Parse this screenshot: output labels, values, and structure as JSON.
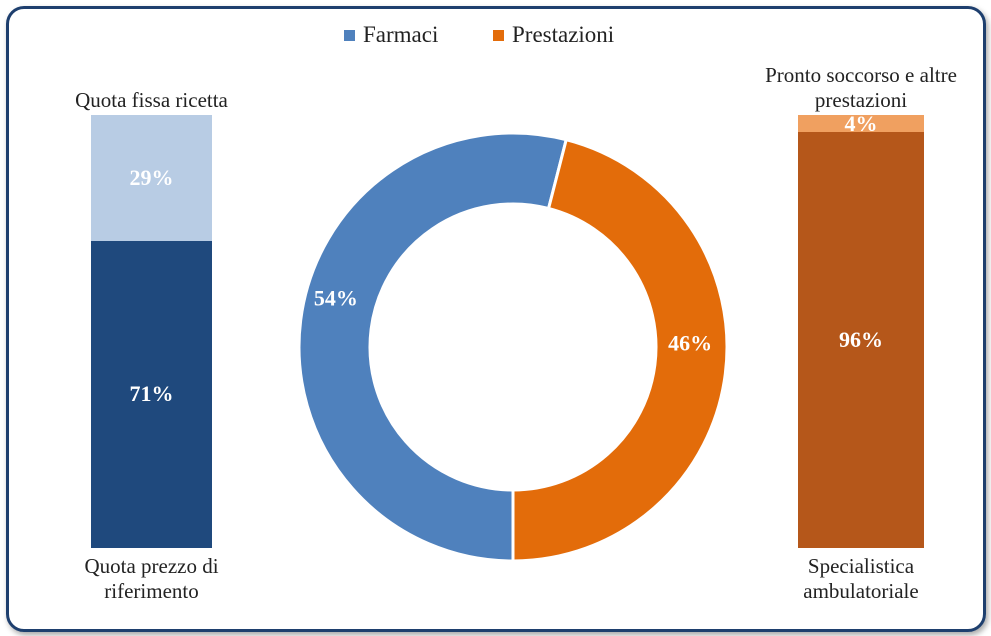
{
  "chart_data": [
    {
      "type": "donut",
      "categories": [
        "Farmaci",
        "Prestazioni"
      ],
      "values": [
        54,
        46
      ],
      "value_labels": [
        "54%",
        "46%"
      ],
      "colors": [
        "#4f81bd",
        "#e36c0a"
      ],
      "legend": "top"
    },
    {
      "type": "stacked_bar",
      "series": [
        {
          "name": "Quota prezzo di riferimento",
          "color": "#1f497d",
          "values": [
            71
          ],
          "value_labels": [
            "71%"
          ]
        },
        {
          "name": "Quota fissa ricetta",
          "color": "#b8cce4",
          "values": [
            29
          ],
          "value_labels": [
            "29%"
          ]
        }
      ]
    },
    {
      "type": "stacked_bar",
      "series": [
        {
          "name": "Specialistica ambulatoriale",
          "color": "#b5571a",
          "values": [
            96
          ],
          "value_labels": [
            "96%"
          ]
        },
        {
          "name": "Pronto soccorso e altre prestazioni",
          "color": "#f0a060",
          "values": [
            4
          ],
          "value_labels": [
            "4%"
          ]
        }
      ]
    }
  ]
}
